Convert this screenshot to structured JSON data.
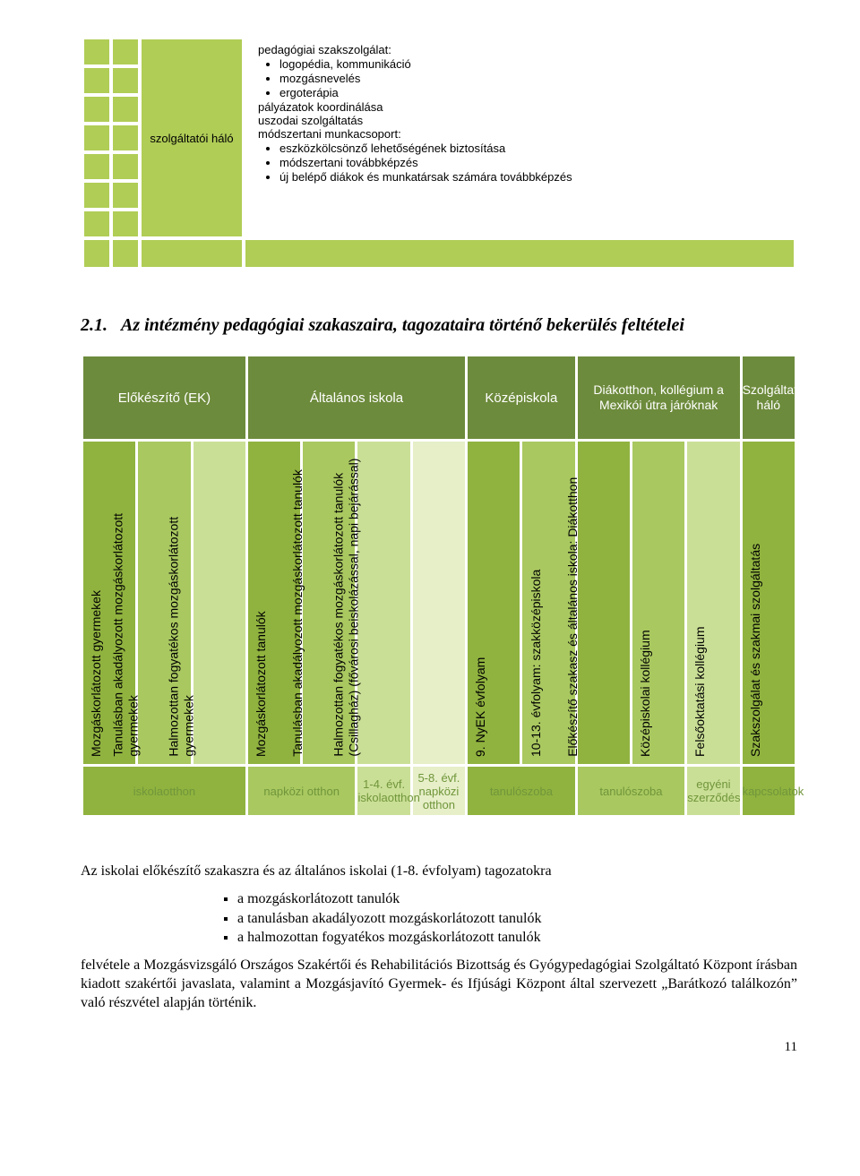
{
  "colors": {
    "accent_green": "#b0cd56",
    "olive": "#6d8b3c",
    "light_green": "#cadf96",
    "very_light": "#e6efc8",
    "header_dark": "#90b33f",
    "header_mid": "#a9c860",
    "footer_dark": "#90b33f",
    "footer_mid": "#a9c860",
    "footer_light": "#cadf96",
    "footer_text": "#6d8b3c"
  },
  "top": {
    "left_label": "szolgáltatói háló",
    "content_heading": "pedagógiai szakszolgálat:",
    "sub_bullets": [
      "logopédia, kommunikáció",
      "mozgásnevelés",
      "ergoterápia"
    ],
    "lines": [
      "pályázatok koordinálása",
      "uszodai szolgáltatás",
      "módszertani munkacsoport:"
    ],
    "sub_bullets2": [
      "eszközkölcsönző lehetőségének biztosítása",
      "módszertani továbbképzés",
      "új belépő diákok és munkatársak számára továbbképzés"
    ]
  },
  "section": {
    "number": "2.1.",
    "title": "Az intézmény pedagógiai szakaszaira, tagozataira történő bekerülés feltételei"
  },
  "table": {
    "headers": [
      {
        "label": "Előkészítő (EK)",
        "span": 3
      },
      {
        "label": "Általános iskola",
        "span": 4
      },
      {
        "label": "Középiskola",
        "span": 2
      },
      {
        "label": "Diákotthon, kollégium a Mexikói útra járóknak",
        "span": 3,
        "small": true
      },
      {
        "label": "Szolgáltatói háló",
        "span": 1,
        "small": true
      }
    ],
    "columns": [
      "Mozgáskorlátozott gyermekek",
      "Tanulásban akadályozott mozgáskorlátozott gyermekek",
      "Halmozottan fogyatékos mozgáskorlátozott gyermekek",
      "Mozgáskorlátozott tanulók",
      "Tanulásban akadályozott mozgáskorlátozott tanulók",
      "Halmozottan fogyatékos mozgáskorlátozott tanulók (Csillagház) (fővárosi beiskolázással, napi bejárással)",
      "",
      "9. NyEK évfolyam",
      "10-13. évfolyam: szakközépiskola",
      "Előkészítő szakasz és általános iskola: Diákotthon",
      "Középiskolai kollégium",
      "Felsőoktatási kollégium",
      "Szakszolgálat és szakmai szolgáltatás"
    ],
    "col_shades": [
      "#90b33f",
      "#a9c860",
      "#cadf96",
      "#90b33f",
      "#a9c860",
      "#cadf96",
      "#e6efc8",
      "#90b33f",
      "#a9c860",
      "#90b33f",
      "#a9c860",
      "#cadf96",
      "#90b33f"
    ],
    "footers": [
      {
        "label": "iskolaotthon",
        "span": 3,
        "shade": "#90b33f"
      },
      {
        "label": "napközi otthon",
        "span": 2,
        "shade": "#a9c860"
      },
      {
        "label": "1-4. évf. iskolaotthon",
        "span": 1,
        "shade": "#cadf96"
      },
      {
        "label": "5-8. évf. napközi otthon",
        "span": 1,
        "shade": "#e6efc8"
      },
      {
        "label": "tanulószoba",
        "span": 2,
        "shade": "#90b33f"
      },
      {
        "label": "tanulószoba",
        "span": 2,
        "shade": "#a9c860"
      },
      {
        "label": "egyéni szerződés",
        "span": 1,
        "shade": "#cadf96"
      },
      {
        "label": "kapcsolatok",
        "span": 1,
        "shade": "#90b33f"
      }
    ]
  },
  "body": {
    "intro": "Az iskolai előkészítő szakaszra és az általános iskolai (1-8. évfolyam) tagozatokra",
    "bullets": [
      "a mozgáskorlátozott tanulók",
      "a tanulásban akadályozott mozgáskorlátozott tanulók",
      "a halmozottan fogyatékos mozgáskorlátozott tanulók"
    ],
    "para": "felvétele a Mozgásvizsgáló Országos Szakértői és Rehabilitációs Bizottság és Gyógypedagógiai Szolgáltató Központ írásban kiadott szakértői javaslata, valamint a Mozgásjavító Gyermek- és Ifjúsági Központ által szervezett „Barátkozó találkozón” való részvétel alapján  történik."
  },
  "page_number": "11"
}
